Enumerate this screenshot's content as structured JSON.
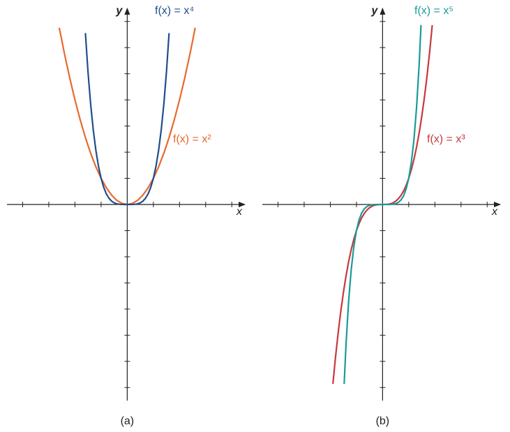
{
  "chart_data": [
    {
      "type": "line",
      "caption": "(a)",
      "xlabel": "x",
      "ylabel": "y",
      "xlim": [
        -4.6,
        4.5
      ],
      "ylim": [
        -7.5,
        7.5
      ],
      "xticks": [
        -4,
        -3,
        -2,
        -1,
        1,
        2,
        3,
        4
      ],
      "yticks": [
        -7,
        -6,
        -5,
        -4,
        -3,
        -2,
        -1,
        1,
        2,
        3,
        4,
        5,
        6,
        7
      ],
      "series": [
        {
          "name": "f(x) = x²",
          "color": "#e8692d",
          "x": [
            -2.6,
            -2.4,
            -2.2,
            -2,
            -1.8,
            -1.6,
            -1.4,
            -1.2,
            -1,
            -0.8,
            -0.6,
            -0.4,
            -0.2,
            0,
            0.2,
            0.4,
            0.6,
            0.8,
            1,
            1.2,
            1.4,
            1.6,
            1.8,
            2,
            2.2,
            2.4,
            2.6
          ],
          "values": [
            6.76,
            5.76,
            4.84,
            4,
            3.24,
            2.56,
            1.96,
            1.44,
            1,
            0.64,
            0.36,
            0.16,
            0.04,
            0,
            0.04,
            0.16,
            0.36,
            0.64,
            1,
            1.44,
            1.96,
            2.56,
            3.24,
            4,
            4.84,
            5.76,
            6.76
          ]
        },
        {
          "name": "f(x) = x⁴",
          "color": "#1f4e8c",
          "x": [
            -1.6,
            -1.5,
            -1.4,
            -1.3,
            -1.2,
            -1.1,
            -1,
            -0.9,
            -0.8,
            -0.7,
            -0.6,
            -0.5,
            -0.4,
            -0.3,
            -0.2,
            -0.1,
            0,
            0.1,
            0.2,
            0.3,
            0.4,
            0.5,
            0.6,
            0.7,
            0.8,
            0.9,
            1,
            1.1,
            1.2,
            1.3,
            1.4,
            1.5,
            1.6
          ],
          "values": [
            6.5536,
            5.0625,
            3.8416,
            2.8561,
            2.0736,
            1.4641,
            1,
            0.6561,
            0.4096,
            0.2401,
            0.1296,
            0.0625,
            0.0256,
            0.0081,
            0.0016,
            0.0001,
            0,
            0.0001,
            0.0016,
            0.0081,
            0.0256,
            0.0625,
            0.1296,
            0.2401,
            0.4096,
            0.6561,
            1,
            1.4641,
            2.0736,
            2.8561,
            3.8416,
            5.0625,
            6.5536
          ]
        }
      ]
    },
    {
      "type": "line",
      "caption": "(b)",
      "xlabel": "x",
      "ylabel": "y",
      "xlim": [
        -4.6,
        4.5
      ],
      "ylim": [
        -7.5,
        7.5
      ],
      "xticks": [
        -4,
        -3,
        -2,
        -1,
        1,
        2,
        3,
        4
      ],
      "yticks": [
        -7,
        -6,
        -5,
        -4,
        -3,
        -2,
        -1,
        1,
        2,
        3,
        4,
        5,
        6,
        7
      ],
      "series": [
        {
          "name": "f(x) = x³",
          "color": "#c8383d",
          "x": [
            -1.9,
            -1.8,
            -1.7,
            -1.6,
            -1.5,
            -1.4,
            -1.3,
            -1.2,
            -1.1,
            -1,
            -0.9,
            -0.8,
            -0.7,
            -0.6,
            -0.5,
            -0.4,
            -0.3,
            -0.2,
            -0.1,
            0,
            0.1,
            0.2,
            0.3,
            0.4,
            0.5,
            0.6,
            0.7,
            0.8,
            0.9,
            1,
            1.1,
            1.2,
            1.3,
            1.4,
            1.5,
            1.6,
            1.7,
            1.8,
            1.9
          ],
          "values": [
            -6.859,
            -5.832,
            -4.913,
            -4.096,
            -3.375,
            -2.744,
            -2.197,
            -1.728,
            -1.331,
            -1,
            -0.729,
            -0.512,
            -0.343,
            -0.216,
            -0.125,
            -0.064,
            -0.027,
            -0.008,
            -0.001,
            0,
            0.001,
            0.008,
            0.027,
            0.064,
            0.125,
            0.216,
            0.343,
            0.512,
            0.729,
            1,
            1.331,
            1.728,
            2.197,
            2.744,
            3.375,
            4.096,
            4.913,
            5.832,
            6.859
          ]
        },
        {
          "name": "f(x) = x⁵",
          "color": "#1a9a9a",
          "x": [
            -1.47,
            -1.4,
            -1.3,
            -1.2,
            -1.1,
            -1,
            -0.9,
            -0.8,
            -0.7,
            -0.6,
            -0.5,
            -0.4,
            -0.3,
            -0.2,
            -0.1,
            0,
            0.1,
            0.2,
            0.3,
            0.4,
            0.5,
            0.6,
            0.7,
            0.8,
            0.9,
            1,
            1.1,
            1.2,
            1.3,
            1.4,
            1.47
          ],
          "values": [
            -6.864,
            -5.37824,
            -3.71293,
            -2.48832,
            -1.61051,
            -1,
            -0.59049,
            -0.32768,
            -0.16807,
            -0.07776,
            -0.03125,
            -0.01024,
            -0.00243,
            -0.00032,
            -1e-05,
            0,
            1e-05,
            0.00032,
            0.00243,
            0.01024,
            0.03125,
            0.07776,
            0.16807,
            0.32768,
            0.59049,
            1,
            1.61051,
            2.48832,
            3.71293,
            5.37824,
            6.864
          ]
        }
      ]
    }
  ]
}
